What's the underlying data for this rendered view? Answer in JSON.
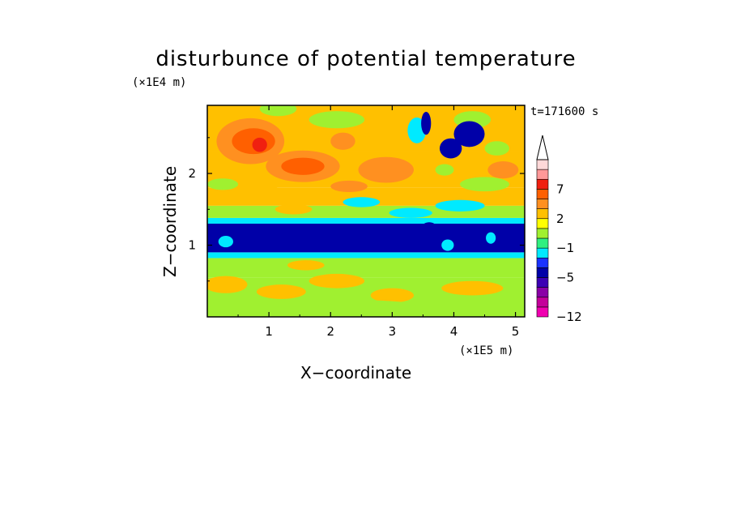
{
  "chart_data": {
    "type": "heatmap",
    "title": "disturbunce of potential temperature",
    "xlabel": "X−coordinate",
    "ylabel": "Z−coordinate",
    "x_unit": "(×1E5 m)",
    "z_unit": "(×1E4 m)",
    "time_label": "t=171600 s",
    "xlim": [
      0,
      5.15
    ],
    "ylim": [
      0,
      2.95
    ],
    "x_ticks": [
      "1",
      "2",
      "3",
      "4",
      "5"
    ],
    "y_ticks": [
      "1",
      "2"
    ],
    "colorbar": {
      "levels": [
        -12,
        -11,
        -9,
        -7,
        -5,
        -4,
        -3,
        -1,
        0,
        1,
        2,
        3,
        5,
        7,
        9,
        11
      ],
      "labels": [
        "−12",
        "−5",
        "−1",
        "2",
        "7"
      ],
      "colors": [
        "#f000b0",
        "#c4009a",
        "#8a00a6",
        "#3c00b4",
        "#0000a8",
        "#1a32ff",
        "#00eaff",
        "#30f080",
        "#a0f030",
        "#ffff00",
        "#ffc000",
        "#ff9020",
        "#ff6000",
        "#f02010",
        "#ff9898",
        "#ffd8d8"
      ]
    },
    "bands": [
      {
        "z0": 0.0,
        "z1": 0.55,
        "value": 0.5
      },
      {
        "z0": 0.55,
        "z1": 0.82,
        "value": 0.2
      },
      {
        "z0": 0.82,
        "z1": 0.9,
        "value": -2
      },
      {
        "z0": 0.9,
        "z1": 1.3,
        "value": -4.5
      },
      {
        "z0": 1.3,
        "z1": 1.38,
        "value": -2
      },
      {
        "z0": 1.38,
        "z1": 1.55,
        "value": 0.5
      },
      {
        "z0": 1.55,
        "z1": 1.8,
        "value": 2.4
      },
      {
        "z0": 1.8,
        "z1": 2.3,
        "value": 2.8
      },
      {
        "z0": 2.3,
        "z1": 2.95,
        "value": 2.2
      }
    ],
    "blobs": [
      {
        "x": 0.3,
        "z": 0.45,
        "rx": 0.35,
        "rz": 0.12,
        "value": 2.3
      },
      {
        "x": 1.2,
        "z": 0.35,
        "rx": 0.4,
        "rz": 0.1,
        "value": 2.3
      },
      {
        "x": 2.1,
        "z": 0.5,
        "rx": 0.45,
        "rz": 0.1,
        "value": 2.3
      },
      {
        "x": 3.0,
        "z": 0.3,
        "rx": 0.35,
        "rz": 0.1,
        "value": 2.3
      },
      {
        "x": 4.3,
        "z": 0.4,
        "rx": 0.5,
        "rz": 0.1,
        "value": 2.3
      },
      {
        "x": 0.5,
        "z": 0.15,
        "rx": 0.5,
        "rz": 0.08,
        "value": 0.6
      },
      {
        "x": 2.6,
        "z": 0.15,
        "rx": 0.8,
        "rz": 0.08,
        "value": 0.6
      },
      {
        "x": 1.6,
        "z": 0.72,
        "rx": 0.3,
        "rz": 0.07,
        "value": 2.3
      },
      {
        "x": 3.7,
        "z": 0.75,
        "rx": 0.4,
        "rz": 0.07,
        "value": 0.6
      },
      {
        "x": 0.5,
        "z": 1.09,
        "rx": 0.55,
        "rz": 0.12,
        "value": -4.5
      },
      {
        "x": 1.8,
        "z": 1.1,
        "rx": 1.1,
        "rz": 0.16,
        "value": -4.5
      },
      {
        "x": 4.3,
        "z": 1.05,
        "rx": 0.8,
        "rz": 0.14,
        "value": -4.5
      },
      {
        "x": 3.6,
        "z": 1.2,
        "rx": 0.15,
        "rz": 0.12,
        "value": -4.5
      },
      {
        "x": 0.3,
        "z": 1.05,
        "rx": 0.12,
        "rz": 0.08,
        "value": -2
      },
      {
        "x": 3.9,
        "z": 1.0,
        "rx": 0.1,
        "rz": 0.08,
        "value": -2
      },
      {
        "x": 4.6,
        "z": 1.1,
        "rx": 0.08,
        "rz": 0.08,
        "value": -2
      },
      {
        "x": 1.4,
        "z": 1.5,
        "rx": 0.3,
        "rz": 0.07,
        "value": 2.3
      },
      {
        "x": 2.5,
        "z": 1.6,
        "rx": 0.3,
        "rz": 0.07,
        "value": -2
      },
      {
        "x": 0.7,
        "z": 1.75,
        "rx": 0.5,
        "rz": 0.1,
        "value": 2.3
      },
      {
        "x": 2.9,
        "z": 2.05,
        "rx": 0.45,
        "rz": 0.18,
        "value": 4.2
      },
      {
        "x": 2.3,
        "z": 1.82,
        "rx": 0.3,
        "rz": 0.08,
        "value": 4.2
      },
      {
        "x": 1.55,
        "z": 2.1,
        "rx": 0.6,
        "rz": 0.22,
        "value": 4.2
      },
      {
        "x": 1.55,
        "z": 2.1,
        "rx": 0.35,
        "rz": 0.12,
        "value": 5.5
      },
      {
        "x": 0.7,
        "z": 2.45,
        "rx": 0.55,
        "rz": 0.32,
        "value": 4.2
      },
      {
        "x": 0.75,
        "z": 2.45,
        "rx": 0.35,
        "rz": 0.18,
        "value": 5.5
      },
      {
        "x": 0.85,
        "z": 2.4,
        "rx": 0.12,
        "rz": 0.1,
        "value": 7.8
      },
      {
        "x": 2.2,
        "z": 2.45,
        "rx": 0.2,
        "rz": 0.12,
        "value": 4.2
      },
      {
        "x": 3.4,
        "z": 2.6,
        "rx": 0.15,
        "rz": 0.18,
        "value": -2
      },
      {
        "x": 1.15,
        "z": 2.9,
        "rx": 0.3,
        "rz": 0.1,
        "value": 0.6
      },
      {
        "x": 4.3,
        "z": 2.75,
        "rx": 0.3,
        "rz": 0.12,
        "value": 0.6
      },
      {
        "x": 4.25,
        "z": 2.55,
        "rx": 0.25,
        "rz": 0.18,
        "value": -4.5
      },
      {
        "x": 3.95,
        "z": 2.35,
        "rx": 0.18,
        "rz": 0.14,
        "value": -4.5
      },
      {
        "x": 3.55,
        "z": 2.7,
        "rx": 0.08,
        "rz": 0.16,
        "value": -4.5
      },
      {
        "x": 3.85,
        "z": 2.05,
        "rx": 0.15,
        "rz": 0.08,
        "value": 0.6
      },
      {
        "x": 4.7,
        "z": 2.35,
        "rx": 0.2,
        "rz": 0.1,
        "value": 0.6
      },
      {
        "x": 4.8,
        "z": 2.05,
        "rx": 0.25,
        "rz": 0.12,
        "value": 4.2
      },
      {
        "x": 4.1,
        "z": 1.55,
        "rx": 0.4,
        "rz": 0.08,
        "value": -2
      },
      {
        "x": 4.5,
        "z": 1.85,
        "rx": 0.4,
        "rz": 0.1,
        "value": 0.6
      },
      {
        "x": 3.3,
        "z": 1.45,
        "rx": 0.35,
        "rz": 0.07,
        "value": -2
      },
      {
        "x": 2.1,
        "z": 2.75,
        "rx": 0.45,
        "rz": 0.12,
        "value": 0.6
      },
      {
        "x": 0.25,
        "z": 1.85,
        "rx": 0.25,
        "rz": 0.08,
        "value": 0.6
      }
    ]
  }
}
